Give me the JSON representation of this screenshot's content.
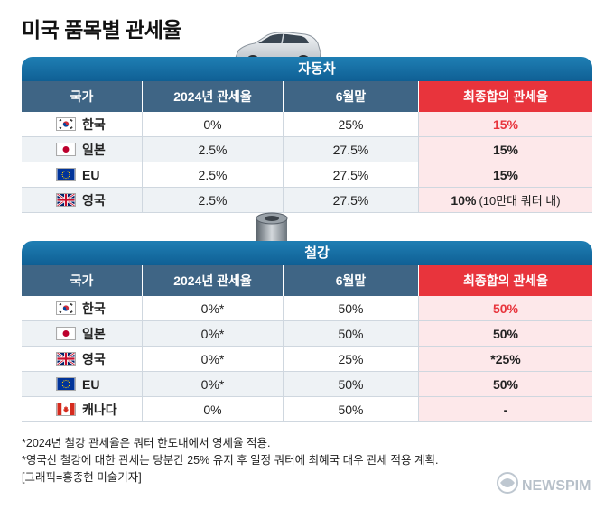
{
  "title": "미국 품목별 관세율",
  "colors": {
    "banner": "#1f7fb4",
    "header": "#3f6585",
    "accent": "#e8343c",
    "highlight_bg": "#fde8ea"
  },
  "chart_data": [
    {
      "type": "table",
      "title": "자동차",
      "headers": [
        "국가",
        "2024년 관세율",
        "6월말",
        "최종합의 관세율"
      ],
      "rows": [
        {
          "flag": "korea-flag-icon",
          "country": "한국",
          "y2024": "0%",
          "june": "25%",
          "final": "15%",
          "note": ""
        },
        {
          "flag": "japan-flag-icon",
          "country": "일본",
          "y2024": "2.5%",
          "june": "27.5%",
          "final": "15%",
          "note": ""
        },
        {
          "flag": "eu-flag-icon",
          "country": "EU",
          "y2024": "2.5%",
          "june": "27.5%",
          "final": "15%",
          "note": ""
        },
        {
          "flag": "uk-flag-icon",
          "country": "영국",
          "y2024": "2.5%",
          "june": "27.5%",
          "final": "10%",
          "note": "(10만대 쿼터 내)"
        }
      ]
    },
    {
      "type": "table",
      "title": "철강",
      "headers": [
        "국가",
        "2024년 관세율",
        "6월말",
        "최종합의 관세율"
      ],
      "rows": [
        {
          "flag": "korea-flag-icon",
          "country": "한국",
          "y2024": "0%*",
          "june": "50%",
          "final": "50%"
        },
        {
          "flag": "japan-flag-icon",
          "country": "일본",
          "y2024": "0%*",
          "june": "50%",
          "final": "50%"
        },
        {
          "flag": "uk-flag-icon",
          "country": "영국",
          "y2024": "0%*",
          "june": "25%",
          "final": "*25%"
        },
        {
          "flag": "eu-flag-icon",
          "country": "EU",
          "y2024": "0%*",
          "june": "50%",
          "final": "50%"
        },
        {
          "flag": "canada-flag-icon",
          "country": "캐나다",
          "y2024": "0%",
          "june": "50%",
          "final": "-"
        }
      ]
    }
  ],
  "footer": {
    "note1": "*2024년 철강 관세율은 쿼터 한도내에서 영세율 적용.",
    "note2": "*영국산 철강에 대한 관세는 당분간 25% 유지 후 일정 쿼터에 최혜국 대우 관세 적용 계획.",
    "credit": "[그래픽=홍종현 미술기자]"
  },
  "watermark": "NEWSPIM"
}
